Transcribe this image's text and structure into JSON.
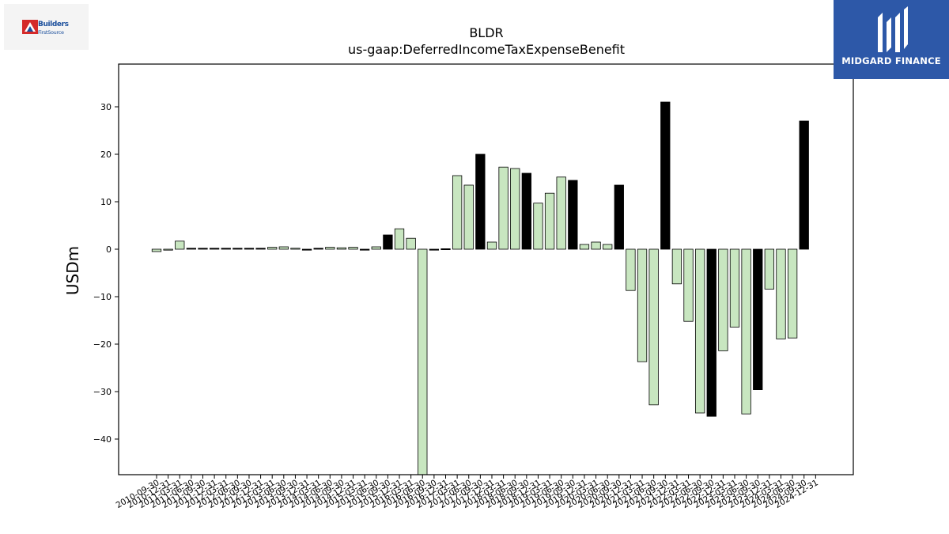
{
  "brand_left": {
    "line1": "Builders",
    "line2": "FirstSource"
  },
  "brand_right": {
    "name": "MIDGARD FINANCE"
  },
  "colors": {
    "positive": "#c8e6c0",
    "negative_neutral": "#000000",
    "edge": "#000000",
    "brand_blue": "#2d58a8",
    "logo_red": "#d42a2a"
  },
  "chart_data": {
    "type": "bar",
    "title": "BLDR",
    "subtitle": "us-gaap:DeferredIncomeTaxExpenseBenefit",
    "ylabel": "USDm",
    "xlabel": "",
    "ylim": [
      -47.5,
      39
    ],
    "yticks": [
      -40,
      -30,
      -20,
      -10,
      0,
      10,
      20,
      30
    ],
    "grid": false,
    "categories": [
      "2010-09-30",
      "2010-12-31",
      "2011-03-31",
      "2011-06-30",
      "2011-09-30",
      "2011-12-31",
      "2012-03-31",
      "2012-06-30",
      "2012-09-30",
      "2012-12-31",
      "2013-03-31",
      "2013-06-30",
      "2013-09-30",
      "2013-12-31",
      "2014-03-31",
      "2014-06-30",
      "2014-09-30",
      "2014-12-31",
      "2015-03-31",
      "2015-06-30",
      "2015-09-30",
      "2015-12-31",
      "2016-03-31",
      "2016-06-30",
      "2016-09-30",
      "2016-12-31",
      "2017-03-31",
      "2017-06-30",
      "2017-09-30",
      "2017-12-31",
      "2018-03-31",
      "2018-06-30",
      "2018-09-30",
      "2018-12-31",
      "2019-03-31",
      "2019-06-30",
      "2019-09-30",
      "2019-12-31",
      "2020-03-31",
      "2020-06-30",
      "2020-09-30",
      "2020-12-31",
      "2021-03-31",
      "2021-06-30",
      "2021-09-30",
      "2021-12-31",
      "2022-03-31",
      "2022-06-30",
      "2022-09-30",
      "2022-12-31",
      "2023-03-31",
      "2023-06-30",
      "2023-09-30",
      "2023-12-31",
      "2024-03-31",
      "2024-06-30",
      "2024-09-30",
      "2024-12-31"
    ],
    "values": [
      -0.5,
      -0.1,
      1.7,
      0.2,
      0.2,
      0.2,
      0.2,
      0.2,
      0.2,
      0.2,
      0.4,
      0.5,
      0.2,
      -0.1,
      0.2,
      0.4,
      0.3,
      0.4,
      -0.2,
      0.5,
      3.0,
      4.3,
      2.3,
      -47.5,
      -0.1,
      0.1,
      15.5,
      13.5,
      20.0,
      1.5,
      17.3,
      17.0,
      16.0,
      9.7,
      11.8,
      15.2,
      14.5,
      1.0,
      1.5,
      1.0,
      13.5,
      -8.7,
      -23.7,
      -32.8,
      31.0,
      -7.3,
      -15.2,
      -34.5,
      -35.2,
      -21.4,
      -16.4,
      -34.7,
      -29.6,
      -8.4,
      -18.9,
      -18.7,
      27.0,
      null
    ],
    "fills": [
      "g",
      "g",
      "g",
      "k",
      "k",
      "k",
      "k",
      "k",
      "k",
      "k",
      "g",
      "g",
      "g",
      "k",
      "k",
      "g",
      "g",
      "g",
      "k",
      "g",
      "k",
      "g",
      "g",
      "g",
      "k",
      "k",
      "g",
      "g",
      "k",
      "g",
      "g",
      "g",
      "k",
      "g",
      "g",
      "g",
      "k",
      "g",
      "g",
      "g",
      "k",
      "g",
      "g",
      "g",
      "k",
      "g",
      "g",
      "g",
      "k",
      "g",
      "g",
      "g",
      "k",
      "g",
      "g",
      "g",
      "k",
      "g"
    ]
  }
}
